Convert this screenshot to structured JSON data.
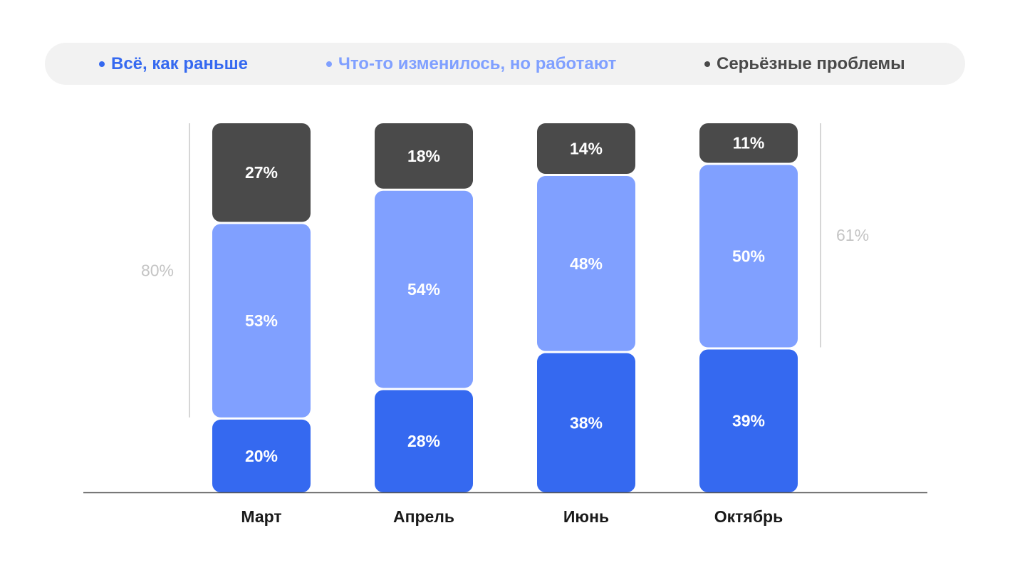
{
  "legend": [
    {
      "label": "Всё, как раньше",
      "color": "#3569f0"
    },
    {
      "label": "Что-то изменилось, но работают",
      "color": "#80a0ff"
    },
    {
      "label": "Серьёзные проблемы",
      "color": "#4a4a4a"
    }
  ],
  "chart_data": {
    "type": "bar",
    "stacked": true,
    "categories": [
      "Март",
      "Апрель",
      "Июнь",
      "Октябрь"
    ],
    "series": [
      {
        "name": "Всё, как раньше",
        "values": [
          20,
          28,
          38,
          39
        ],
        "labels": [
          "20%",
          "28%",
          "38%",
          "39%"
        ],
        "color": "#3569f0"
      },
      {
        "name": "Что-то изменилось, но работают",
        "values": [
          53,
          54,
          48,
          50
        ],
        "labels": [
          "53%",
          "54%",
          "48%",
          "50%"
        ],
        "color": "#80a0ff"
      },
      {
        "name": "Серьёзные проблемы",
        "values": [
          27,
          18,
          14,
          11
        ],
        "labels": [
          "27%",
          "18%",
          "14%",
          "11%"
        ],
        "color": "#4a4a4a"
      }
    ],
    "brackets": [
      {
        "label": "80%",
        "category": "Март",
        "series": [
          "Серьёзные проблемы",
          "Что-то изменилось, но работают"
        ],
        "side": "left"
      },
      {
        "label": "61%",
        "category": "Октябрь",
        "series": [
          "Серьёзные проблемы",
          "Что-то изменилось, но работают"
        ],
        "side": "right"
      }
    ],
    "ylim": [
      0,
      100
    ],
    "legend_position": "top",
    "grid": false
  }
}
